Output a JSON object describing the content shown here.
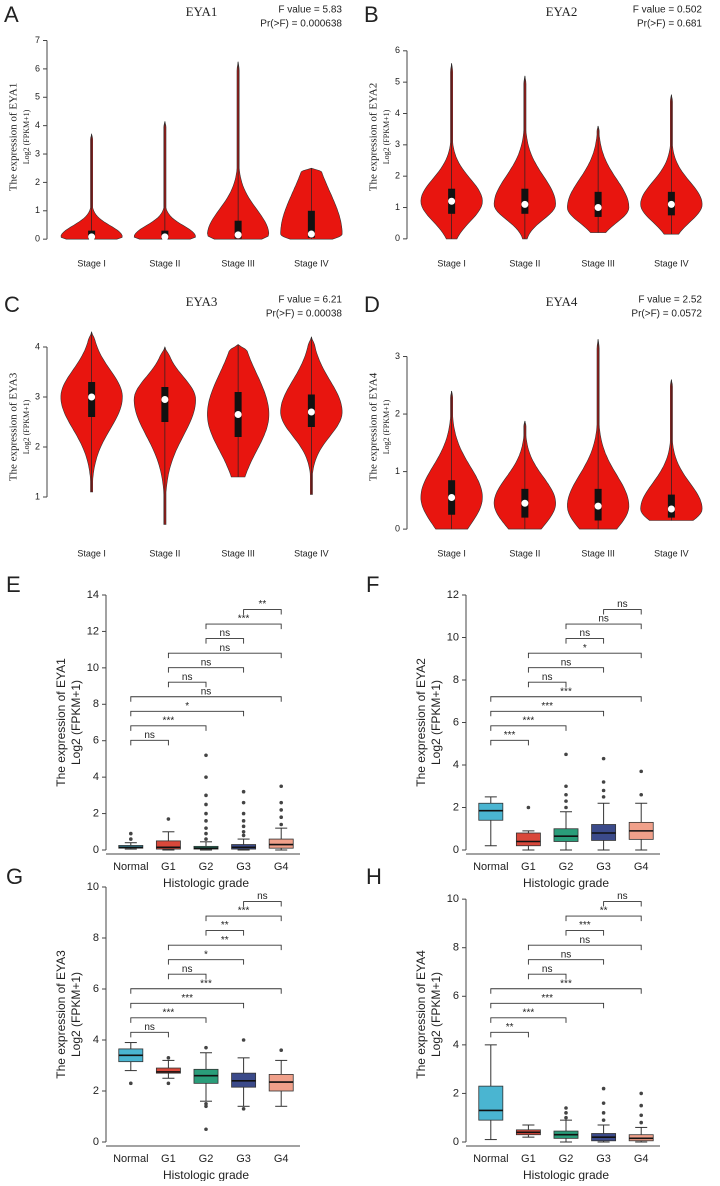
{
  "chart_data": [
    {
      "type": "violin",
      "panel_label": "A",
      "title": "EYA1",
      "annotations": [
        "F value = 5.83",
        "Pr(>F) = 0.000638"
      ],
      "ylabel": "The expression of EYA1",
      "ylabel2": "Log2 (FPKM+1)",
      "categories": [
        "Stage I",
        "Stage II",
        "Stage III",
        "Stage IV"
      ],
      "color": "#e8150f",
      "stats": [
        {
          "min": 0,
          "q1": 0,
          "median": 0.08,
          "q3": 0.3,
          "max": 3.7
        },
        {
          "min": 0,
          "q1": 0,
          "median": 0.08,
          "q3": 0.3,
          "max": 4.15
        },
        {
          "min": 0,
          "q1": 0.02,
          "median": 0.15,
          "q3": 0.65,
          "max": 6.25
        },
        {
          "min": 0,
          "q1": 0.05,
          "median": 0.18,
          "q3": 1.0,
          "max": 2.5
        }
      ],
      "ylim": [
        -0.1,
        7.3
      ],
      "yticks": [
        0,
        1,
        2,
        3,
        4,
        5,
        6,
        7
      ]
    },
    {
      "type": "violin",
      "panel_label": "B",
      "title": "EYA2",
      "annotations": [
        "F value = 0.502",
        "Pr(>F) = 0.681"
      ],
      "ylabel": "The expression of EYA2",
      "ylabel2": "Log2 (FPKM+1)",
      "categories": [
        "Stage I",
        "Stage II",
        "Stage III",
        "Stage IV"
      ],
      "color": "#e8150f",
      "stats": [
        {
          "min": 0,
          "q1": 0.8,
          "median": 1.2,
          "q3": 1.6,
          "max": 5.6
        },
        {
          "min": 0,
          "q1": 0.8,
          "median": 1.1,
          "q3": 1.6,
          "max": 5.2
        },
        {
          "min": 0.2,
          "q1": 0.7,
          "median": 1.0,
          "q3": 1.5,
          "max": 3.6
        },
        {
          "min": 0.15,
          "q1": 0.75,
          "median": 1.1,
          "q3": 1.5,
          "max": 4.6
        }
      ],
      "ylim": [
        -0.1,
        6.6
      ],
      "yticks": [
        0,
        1,
        2,
        3,
        4,
        5,
        6
      ]
    },
    {
      "type": "violin",
      "panel_label": "C",
      "title": "EYA3",
      "annotations": [
        "F value = 6.21",
        "Pr(>F) = 0.00038"
      ],
      "ylabel": "The expression of EYA3",
      "ylabel2": "Log2 (FPKM+1)",
      "categories": [
        "Stage I",
        "Stage II",
        "Stage III",
        "Stage IV"
      ],
      "color": "#e8150f",
      "stats": [
        {
          "min": 1.1,
          "q1": 2.6,
          "median": 3.0,
          "q3": 3.3,
          "max": 4.3
        },
        {
          "min": 0.45,
          "q1": 2.5,
          "median": 2.95,
          "q3": 3.2,
          "max": 4.0
        },
        {
          "min": 1.4,
          "q1": 2.2,
          "median": 2.65,
          "q3": 3.1,
          "max": 4.05
        },
        {
          "min": 1.05,
          "q1": 2.4,
          "median": 2.7,
          "q3": 3.05,
          "max": 4.2
        }
      ],
      "ylim": [
        0.3,
        4.5
      ],
      "yticks": [
        1,
        2,
        3,
        4
      ]
    },
    {
      "type": "violin",
      "panel_label": "D",
      "title": "EYA4",
      "annotations": [
        "F value = 2.52",
        "Pr(>F) = 0.0572"
      ],
      "ylabel": "The expression of EYA4",
      "ylabel2": "Log2 (FPKM+1)",
      "categories": [
        "Stage I",
        "Stage II",
        "Stage III",
        "Stage IV"
      ],
      "color": "#e8150f",
      "stats": [
        {
          "min": 0,
          "q1": 0.25,
          "median": 0.55,
          "q3": 0.85,
          "max": 2.4
        },
        {
          "min": 0,
          "q1": 0.2,
          "median": 0.45,
          "q3": 0.7,
          "max": 1.88
        },
        {
          "min": 0,
          "q1": 0.15,
          "median": 0.4,
          "q3": 0.7,
          "max": 3.3
        },
        {
          "min": 0.15,
          "q1": 0.2,
          "median": 0.35,
          "q3": 0.6,
          "max": 2.6
        }
      ],
      "ylim": [
        -0.05,
        3.6
      ],
      "yticks": [
        0,
        1,
        2,
        3
      ]
    },
    {
      "type": "box",
      "panel_label": "E",
      "ylabel": "The expression of EYA1",
      "ylabel2": "Log2 (FPKM+1)",
      "xlabel": "Histologic grade",
      "categories": [
        "Normal",
        "G1",
        "G2",
        "G3",
        "G4"
      ],
      "colors": [
        "#4ab5d1",
        "#d9483b",
        "#2a9d7a",
        "#3b4a8a",
        "#f0a08a"
      ],
      "stats": [
        {
          "min": 0.05,
          "q1": 0.1,
          "median": 0.15,
          "q3": 0.25,
          "max": 0.4,
          "outliers": [
            0.6,
            0.9
          ]
        },
        {
          "min": 0,
          "q1": 0.05,
          "median": 0.15,
          "q3": 0.5,
          "max": 1.0,
          "outliers": [
            1.7
          ]
        },
        {
          "min": 0,
          "q1": 0.05,
          "median": 0.1,
          "q3": 0.2,
          "max": 0.45,
          "outliers": [
            0.6,
            0.9,
            1.2,
            1.6,
            2.0,
            2.5,
            3.0,
            4.0,
            5.2
          ]
        },
        {
          "min": 0,
          "q1": 0.05,
          "median": 0.15,
          "q3": 0.3,
          "max": 0.6,
          "outliers": [
            0.8,
            1.0,
            1.3,
            1.6,
            2.0,
            2.6,
            3.2
          ]
        },
        {
          "min": 0,
          "q1": 0.1,
          "median": 0.3,
          "q3": 0.6,
          "max": 1.2,
          "outliers": [
            1.4,
            1.8,
            2.2,
            2.6,
            3.5
          ]
        }
      ],
      "comparisons": [
        {
          "groups": [
            "Normal",
            "G1"
          ],
          "label": "ns"
        },
        {
          "groups": [
            "Normal",
            "G2"
          ],
          "label": "***"
        },
        {
          "groups": [
            "Normal",
            "G3"
          ],
          "label": "*"
        },
        {
          "groups": [
            "Normal",
            "G4"
          ],
          "label": "ns"
        },
        {
          "groups": [
            "G1",
            "G2"
          ],
          "label": "ns"
        },
        {
          "groups": [
            "G1",
            "G3"
          ],
          "label": "ns"
        },
        {
          "groups": [
            "G1",
            "G4"
          ],
          "label": "ns"
        },
        {
          "groups": [
            "G2",
            "G3"
          ],
          "label": "ns"
        },
        {
          "groups": [
            "G2",
            "G4"
          ],
          "label": "***"
        },
        {
          "groups": [
            "G3",
            "G4"
          ],
          "label": "**"
        }
      ],
      "ylim": [
        0,
        14
      ],
      "yticks": [
        0,
        2,
        4,
        6,
        8,
        10,
        12,
        14
      ]
    },
    {
      "type": "box",
      "panel_label": "F",
      "ylabel": "The expression of EYA2",
      "ylabel2": "Log2 (FPKM+1)",
      "xlabel": "Histologic grade",
      "categories": [
        "Normal",
        "G1",
        "G2",
        "G3",
        "G4"
      ],
      "colors": [
        "#4ab5d1",
        "#d9483b",
        "#2a9d7a",
        "#3b4a8a",
        "#f0a08a"
      ],
      "stats": [
        {
          "min": 0.2,
          "q1": 1.4,
          "median": 1.85,
          "q3": 2.2,
          "max": 2.5,
          "outliers": []
        },
        {
          "min": 0,
          "q1": 0.2,
          "median": 0.4,
          "q3": 0.8,
          "max": 0.9,
          "outliers": [
            2.0
          ]
        },
        {
          "min": 0,
          "q1": 0.4,
          "median": 0.65,
          "q3": 1.0,
          "max": 1.8,
          "outliers": [
            2.0,
            2.3,
            2.6,
            3.0,
            4.5
          ]
        },
        {
          "min": 0,
          "q1": 0.45,
          "median": 0.8,
          "q3": 1.2,
          "max": 2.2,
          "outliers": [
            2.5,
            2.8,
            3.2,
            4.3
          ]
        },
        {
          "min": 0,
          "q1": 0.5,
          "median": 0.9,
          "q3": 1.3,
          "max": 2.2,
          "outliers": [
            2.6,
            3.7
          ]
        }
      ],
      "comparisons": [
        {
          "groups": [
            "Normal",
            "G1"
          ],
          "label": "***"
        },
        {
          "groups": [
            "Normal",
            "G2"
          ],
          "label": "***"
        },
        {
          "groups": [
            "Normal",
            "G3"
          ],
          "label": "***"
        },
        {
          "groups": [
            "Normal",
            "G4"
          ],
          "label": "***"
        },
        {
          "groups": [
            "G1",
            "G2"
          ],
          "label": "ns"
        },
        {
          "groups": [
            "G1",
            "G3"
          ],
          "label": "ns"
        },
        {
          "groups": [
            "G1",
            "G4"
          ],
          "label": "*"
        },
        {
          "groups": [
            "G2",
            "G3"
          ],
          "label": "ns"
        },
        {
          "groups": [
            "G2",
            "G4"
          ],
          "label": "ns"
        },
        {
          "groups": [
            "G3",
            "G4"
          ],
          "label": "ns"
        }
      ],
      "ylim": [
        0,
        12
      ],
      "yticks": [
        0,
        2,
        4,
        6,
        8,
        10,
        12
      ]
    },
    {
      "type": "box",
      "panel_label": "G",
      "ylabel": "The expression of EYA3",
      "ylabel2": "Log2 (FPKM+1)",
      "xlabel": "Histologic grade",
      "categories": [
        "Normal",
        "G1",
        "G2",
        "G3",
        "G4"
      ],
      "colors": [
        "#4ab5d1",
        "#d9483b",
        "#2a9d7a",
        "#3b4a8a",
        "#f0a08a"
      ],
      "stats": [
        {
          "min": 2.8,
          "q1": 3.15,
          "median": 3.4,
          "q3": 3.65,
          "max": 3.9,
          "outliers": [
            2.3
          ]
        },
        {
          "min": 2.5,
          "q1": 2.7,
          "median": 2.75,
          "q3": 2.9,
          "max": 3.2,
          "outliers": [
            2.3,
            3.3
          ]
        },
        {
          "min": 1.6,
          "q1": 2.3,
          "median": 2.6,
          "q3": 2.85,
          "max": 3.5,
          "outliers": [
            0.5,
            1.4,
            1.5,
            3.7
          ]
        },
        {
          "min": 1.4,
          "q1": 2.15,
          "median": 2.4,
          "q3": 2.7,
          "max": 3.3,
          "outliers": [
            1.3,
            4.0
          ]
        },
        {
          "min": 1.4,
          "q1": 2.0,
          "median": 2.35,
          "q3": 2.65,
          "max": 3.2,
          "outliers": [
            3.6
          ]
        }
      ],
      "comparisons": [
        {
          "groups": [
            "Normal",
            "G1"
          ],
          "label": "ns"
        },
        {
          "groups": [
            "Normal",
            "G2"
          ],
          "label": "***"
        },
        {
          "groups": [
            "Normal",
            "G3"
          ],
          "label": "***"
        },
        {
          "groups": [
            "Normal",
            "G4"
          ],
          "label": "***"
        },
        {
          "groups": [
            "G1",
            "G2"
          ],
          "label": "ns"
        },
        {
          "groups": [
            "G1",
            "G3"
          ],
          "label": "*"
        },
        {
          "groups": [
            "G1",
            "G4"
          ],
          "label": "**"
        },
        {
          "groups": [
            "G2",
            "G3"
          ],
          "label": "**"
        },
        {
          "groups": [
            "G2",
            "G4"
          ],
          "label": "***"
        },
        {
          "groups": [
            "G3",
            "G4"
          ],
          "label": "ns"
        }
      ],
      "ylim": [
        0,
        10
      ],
      "yticks": [
        0,
        2,
        4,
        6,
        8,
        10
      ]
    },
    {
      "type": "box",
      "panel_label": "H",
      "ylabel": "The expression of EYA4",
      "ylabel2": "Log2 (FPKM+1)",
      "xlabel": "Histologic grade",
      "categories": [
        "Normal",
        "G1",
        "G2",
        "G3",
        "G4"
      ],
      "colors": [
        "#4ab5d1",
        "#d9483b",
        "#2a9d7a",
        "#3b4a8a",
        "#f0a08a"
      ],
      "stats": [
        {
          "min": 0.1,
          "q1": 0.9,
          "median": 1.3,
          "q3": 2.3,
          "max": 4.0,
          "outliers": []
        },
        {
          "min": 0.2,
          "q1": 0.3,
          "median": 0.4,
          "q3": 0.5,
          "max": 0.7,
          "outliers": []
        },
        {
          "min": 0,
          "q1": 0.15,
          "median": 0.3,
          "q3": 0.45,
          "max": 0.9,
          "outliers": [
            1.0,
            1.2,
            1.4
          ]
        },
        {
          "min": 0,
          "q1": 0.05,
          "median": 0.2,
          "q3": 0.35,
          "max": 0.7,
          "outliers": [
            0.9,
            1.2,
            1.6,
            2.2
          ]
        },
        {
          "min": 0,
          "q1": 0.05,
          "median": 0.15,
          "q3": 0.3,
          "max": 0.6,
          "outliers": [
            0.8,
            1.1,
            1.5,
            2.0
          ]
        }
      ],
      "comparisons": [
        {
          "groups": [
            "Normal",
            "G1"
          ],
          "label": "**"
        },
        {
          "groups": [
            "Normal",
            "G2"
          ],
          "label": "***"
        },
        {
          "groups": [
            "Normal",
            "G3"
          ],
          "label": "***"
        },
        {
          "groups": [
            "Normal",
            "G4"
          ],
          "label": "***"
        },
        {
          "groups": [
            "G1",
            "G2"
          ],
          "label": "ns"
        },
        {
          "groups": [
            "G1",
            "G3"
          ],
          "label": "ns"
        },
        {
          "groups": [
            "G1",
            "G4"
          ],
          "label": "ns"
        },
        {
          "groups": [
            "G2",
            "G3"
          ],
          "label": "***"
        },
        {
          "groups": [
            "G2",
            "G4"
          ],
          "label": "**"
        },
        {
          "groups": [
            "G3",
            "G4"
          ],
          "label": "ns"
        }
      ],
      "ylim": [
        0,
        10.5
      ],
      "yticks": [
        0,
        2,
        4,
        6,
        8,
        10
      ]
    }
  ]
}
